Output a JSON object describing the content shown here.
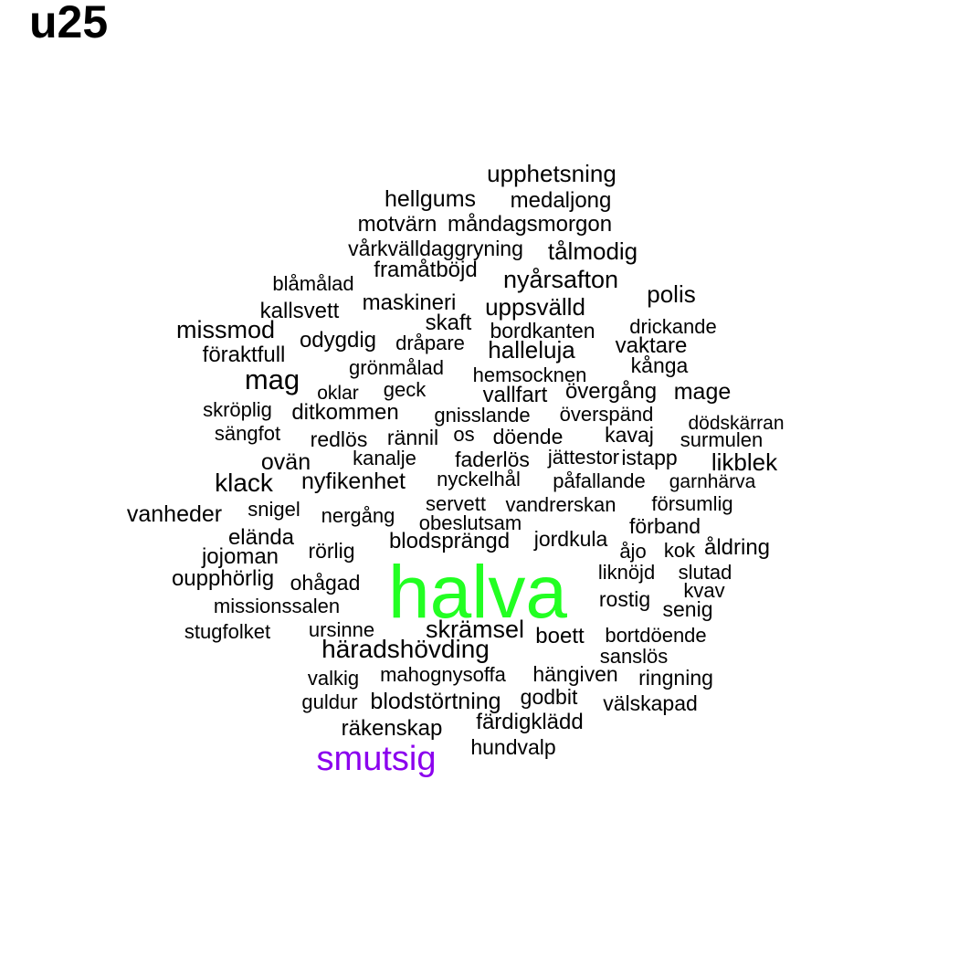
{
  "title": "u25",
  "colors": {
    "default": "#000000",
    "highlight_green": "#22ff22",
    "highlight_purple": "#8b00ee"
  },
  "words": [
    "upphetsning",
    "hellgums",
    "medaljong",
    "motvärn",
    "måndagsmorgon",
    "vårkvälldaggryning",
    "tålmodig",
    "framåtböjd",
    "blåmålad",
    "nyårsafton",
    "polis",
    "maskineri",
    "kallsvett",
    "uppsvälld",
    "skaft",
    "missmod",
    "bordkanten",
    "drickande",
    "odygdig",
    "dråpare",
    "halleluja",
    "vaktare",
    "föraktfull",
    "kånga",
    "mag",
    "grönmålad",
    "hemsocknen",
    "oklar",
    "geck",
    "vallfart",
    "övergång",
    "mage",
    "skröplig",
    "ditkommen",
    "gnisslande",
    "överspänd",
    "dödskärran",
    "sängfot",
    "redlös",
    "rännil",
    "os",
    "döende",
    "kavaj",
    "surmulen",
    "ovän",
    "kanalje",
    "faderlös",
    "jättestor",
    "istapp",
    "likblek",
    "klack",
    "nyfikenhet",
    "nyckelhål",
    "påfallande",
    "garnhärva",
    "servett",
    "vandrerskan",
    "försumlig",
    "vanheder",
    "snigel",
    "nergång",
    "obeslutsam",
    "förband",
    "elända",
    "blodsprängd",
    "jordkula",
    "jojoman",
    "rörlig",
    "åjo",
    "kok",
    "åldring",
    "oupphörlig",
    "liknöjd",
    "slutad",
    "ohågad",
    "kvav",
    "missionssalen",
    "halva",
    "rostig",
    "senig",
    "stugfolket",
    "ursinne",
    "skrämsel",
    "boett",
    "bortdöende",
    "häradshövding",
    "sanslös",
    "mahognysoffa",
    "hängiven",
    "valkig",
    "ringning",
    "guldur",
    "blodstörtning",
    "godbit",
    "välskapad",
    "räkenskap",
    "färdigklädd",
    "smutsig",
    "hundvalp"
  ],
  "highlighted": {
    "halva": "highlight_green",
    "smutsig": "highlight_purple"
  }
}
